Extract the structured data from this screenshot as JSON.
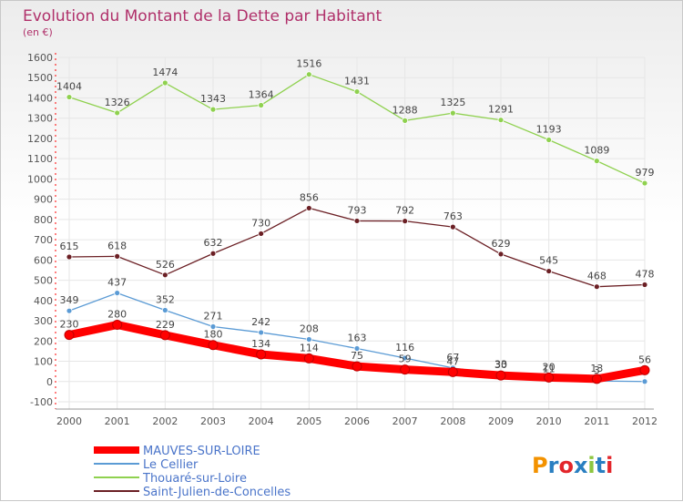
{
  "chart_data": {
    "type": "line",
    "title": "Evolution du Montant de la Dette par Habitant",
    "subtitle": "(en €)",
    "x": [
      2000,
      2001,
      2002,
      2003,
      2004,
      2005,
      2006,
      2007,
      2008,
      2009,
      2010,
      2011,
      2012
    ],
    "x_tick_labels": [
      "2000",
      "2001",
      "2002",
      "2003",
      "2004",
      "2005",
      "2006",
      "2007",
      "2008",
      "2009",
      "2010",
      "2011",
      "2012"
    ],
    "ylim": [
      -100,
      1600
    ],
    "y_ticks": [
      -100,
      0,
      100,
      200,
      300,
      400,
      500,
      600,
      700,
      800,
      900,
      1000,
      1100,
      1200,
      1300,
      1400,
      1500,
      1600
    ],
    "y_tick_labels": [
      "-100",
      "0",
      "100",
      "200",
      "300",
      "400",
      "500",
      "600",
      "700",
      "800",
      "900",
      "1000",
      "1100",
      "1200",
      "1300",
      "1400",
      "1500",
      "1600"
    ],
    "grid": true,
    "legend_position": "bottom-left",
    "series": [
      {
        "name": "MAUVES-SUR-LOIRE",
        "color": "#ff0000",
        "values": [
          230,
          280,
          229,
          180,
          134,
          114,
          75,
          59,
          47,
          30,
          20,
          13,
          56
        ],
        "labels": [
          "230",
          "280",
          "229",
          "180",
          "134",
          "114",
          "75",
          "59",
          "47",
          "30",
          "20",
          "13",
          "56"
        ]
      },
      {
        "name": "Le Cellier",
        "color": "#5b9bd5",
        "values": [
          349,
          437,
          352,
          271,
          242,
          208,
          163,
          116,
          67,
          33,
          11,
          3,
          0
        ],
        "labels": [
          "349",
          "437",
          "352",
          "271",
          "242",
          "208",
          "163",
          "116",
          "67",
          "33",
          "11",
          "3",
          ""
        ]
      },
      {
        "name": "Thouaré-sur-Loire",
        "color": "#8fd14f",
        "values": [
          1404,
          1326,
          1474,
          1343,
          1364,
          1516,
          1431,
          1288,
          1325,
          1291,
          1193,
          1089,
          979
        ],
        "labels": [
          "1404",
          "1326",
          "1474",
          "1343",
          "1364",
          "1516",
          "1431",
          "1288",
          "1325",
          "1291",
          "1193",
          "1089",
          "979"
        ]
      },
      {
        "name": "Saint-Julien-de-Concelles",
        "color": "#6b1f24",
        "values": [
          615,
          618,
          526,
          632,
          730,
          856,
          793,
          792,
          763,
          629,
          545,
          468,
          478
        ],
        "labels": [
          "615",
          "618",
          "526",
          "632",
          "730",
          "856",
          "793",
          "792",
          "763",
          "629",
          "545",
          "468",
          "478"
        ]
      }
    ],
    "brand": "Proxiti",
    "colors": {
      "title": "#b0306a",
      "axis": "#555555",
      "grid": "#e8e8e8",
      "label": "#555555",
      "legend_text": "#4a74c9"
    }
  }
}
